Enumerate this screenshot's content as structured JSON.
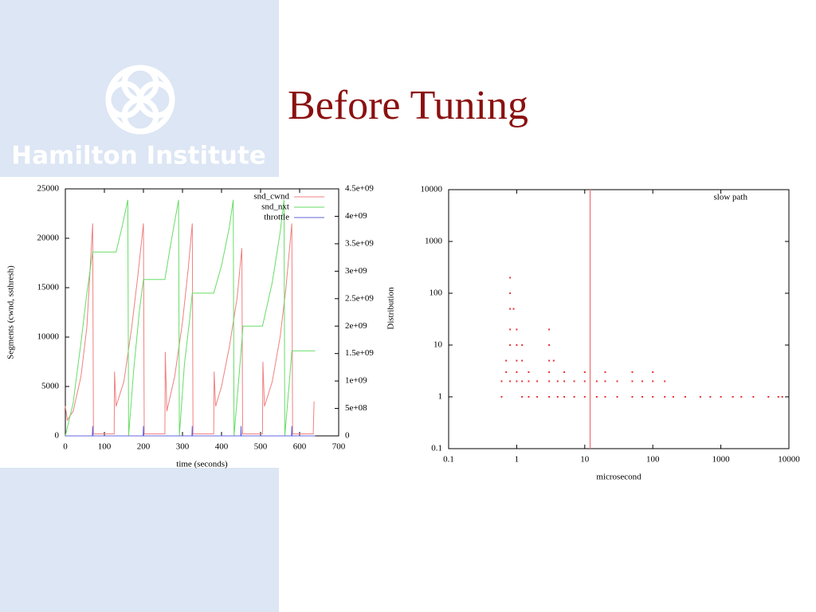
{
  "title": "Before Tuning",
  "logo_text": "Hamilton Institute",
  "chart_data": [
    {
      "type": "line",
      "xlabel": "time (seconds)",
      "ylabel": "Segments (cwnd, ssthresh)",
      "y2label": "Distribution",
      "xlim": [
        0,
        700
      ],
      "xticks": [
        0,
        100,
        200,
        300,
        400,
        500,
        600,
        700
      ],
      "ylim": [
        0,
        25000
      ],
      "yticks": [
        0,
        5000,
        10000,
        15000,
        20000,
        25000
      ],
      "y2lim": [
        0,
        4500000000
      ],
      "y2ticks": [
        0,
        {
          "value": 500000000,
          "label": "5e+08"
        },
        {
          "value": 1000000000,
          "label": "1e+09"
        },
        {
          "value": 1500000000,
          "label": "1.5e+09"
        },
        {
          "value": 2000000000,
          "label": "2e+09"
        },
        {
          "value": 2500000000,
          "label": "2.5e+09"
        },
        {
          "value": 3000000000,
          "label": "3e+09"
        },
        {
          "value": 3500000000,
          "label": "3.5e+09"
        },
        {
          "value": 4000000000,
          "label": "4e+09"
        },
        {
          "value": 4500000000,
          "label": "4.5e+09"
        }
      ],
      "legend": "upper right",
      "series": [
        {
          "name": "snd_cwnd",
          "color": "#f08080",
          "x": [
            0,
            5,
            20,
            40,
            55,
            70,
            72,
            125,
            126,
            130,
            150,
            170,
            185,
            200,
            202,
            255,
            256,
            260,
            280,
            300,
            315,
            325,
            327,
            380,
            381,
            385,
            400,
            420,
            440,
            452,
            454,
            505,
            506,
            510,
            530,
            550,
            565,
            580,
            582,
            635,
            637
          ],
          "values": [
            3000,
            1600,
            2500,
            6000,
            11000,
            21500,
            200,
            200,
            6500,
            3000,
            5500,
            11000,
            16000,
            21500,
            200,
            200,
            8500,
            2500,
            6000,
            11500,
            17000,
            21500,
            200,
            200,
            6500,
            3000,
            5000,
            9000,
            14000,
            19000,
            200,
            200,
            7500,
            3000,
            5500,
            10000,
            15000,
            21500,
            200,
            200,
            3500
          ]
        },
        {
          "name": "snd_nxt",
          "color": "#66dd66",
          "axis": "y2",
          "x": [
            0,
            20,
            40,
            55,
            70,
            130,
            145,
            160,
            162,
            175,
            190,
            200,
            255,
            270,
            290,
            292,
            305,
            318,
            325,
            380,
            400,
            420,
            430,
            432,
            445,
            455,
            505,
            530,
            550,
            560,
            562,
            575,
            580,
            640
          ],
          "values": [
            0,
            600000000,
            1700000000,
            2600000000,
            3350000000,
            3350000000,
            3800000000,
            4300000000,
            0,
            1200000000,
            2300000000,
            2850000000,
            2850000000,
            3500000000,
            4300000000,
            0,
            1300000000,
            2100000000,
            2600000000,
            2600000000,
            3100000000,
            3800000000,
            4300000000,
            0,
            1100000000,
            2000000000,
            2000000000,
            2800000000,
            3700000000,
            4300000000,
            0,
            1100000000,
            1550000000,
            1550000000
          ]
        },
        {
          "name": "throttle",
          "color": "#6666dd",
          "x": [
            0,
            69,
            70,
            71,
            199,
            200,
            201,
            324,
            325,
            326,
            449,
            450,
            451,
            579,
            580,
            581,
            640
          ],
          "values": [
            0,
            0,
            1000,
            0,
            0,
            1000,
            0,
            0,
            1000,
            0,
            0,
            1000,
            0,
            0,
            1000,
            0,
            0
          ]
        }
      ]
    },
    {
      "type": "scatter",
      "log_x": true,
      "log_y": true,
      "xlabel": "microsecond",
      "xlim": [
        0.1,
        10000
      ],
      "xticks": [
        0.1,
        1,
        10,
        100,
        1000,
        10000
      ],
      "ylim": [
        0.1,
        10000
      ],
      "yticks": [
        0.1,
        1,
        10,
        100,
        1000,
        10000
      ],
      "vline": 12,
      "vline_color": "#f08080",
      "legend": "upper right",
      "series": [
        {
          "name": "slow path",
          "color": "#e83030",
          "x": [
            0.6,
            1.2,
            1.5,
            2,
            3,
            4,
            5,
            7,
            10,
            15,
            20,
            30,
            50,
            70,
            100,
            150,
            200,
            300,
            500,
            700,
            1000,
            1500,
            2000,
            3000,
            5000,
            7000,
            8000,
            0.6,
            0.8,
            1,
            1.2,
            1.5,
            2,
            3,
            4,
            5,
            7,
            10,
            15,
            20,
            30,
            50,
            70,
            100,
            150,
            0.7,
            1,
            1.5,
            3,
            5,
            10,
            20,
            50,
            100,
            0.7,
            1,
            1.2,
            3,
            3.5,
            0.8,
            1,
            1.2,
            3,
            0.8,
            1,
            3,
            0.8,
            0.9,
            0.8,
            0.8
          ],
          "values": [
            1,
            1,
            1,
            1,
            1,
            1,
            1,
            1,
            1,
            1,
            1,
            1,
            1,
            1,
            1,
            1,
            1,
            1,
            1,
            1,
            1,
            1,
            1,
            1,
            1,
            1,
            1,
            2,
            2,
            2,
            2,
            2,
            2,
            2,
            2,
            2,
            2,
            2,
            2,
            2,
            2,
            2,
            2,
            2,
            2,
            3,
            3,
            3,
            3,
            3,
            3,
            3,
            3,
            3,
            5,
            5,
            5,
            5,
            5,
            10,
            10,
            10,
            10,
            20,
            20,
            20,
            50,
            50,
            100,
            200
          ]
        }
      ]
    }
  ]
}
